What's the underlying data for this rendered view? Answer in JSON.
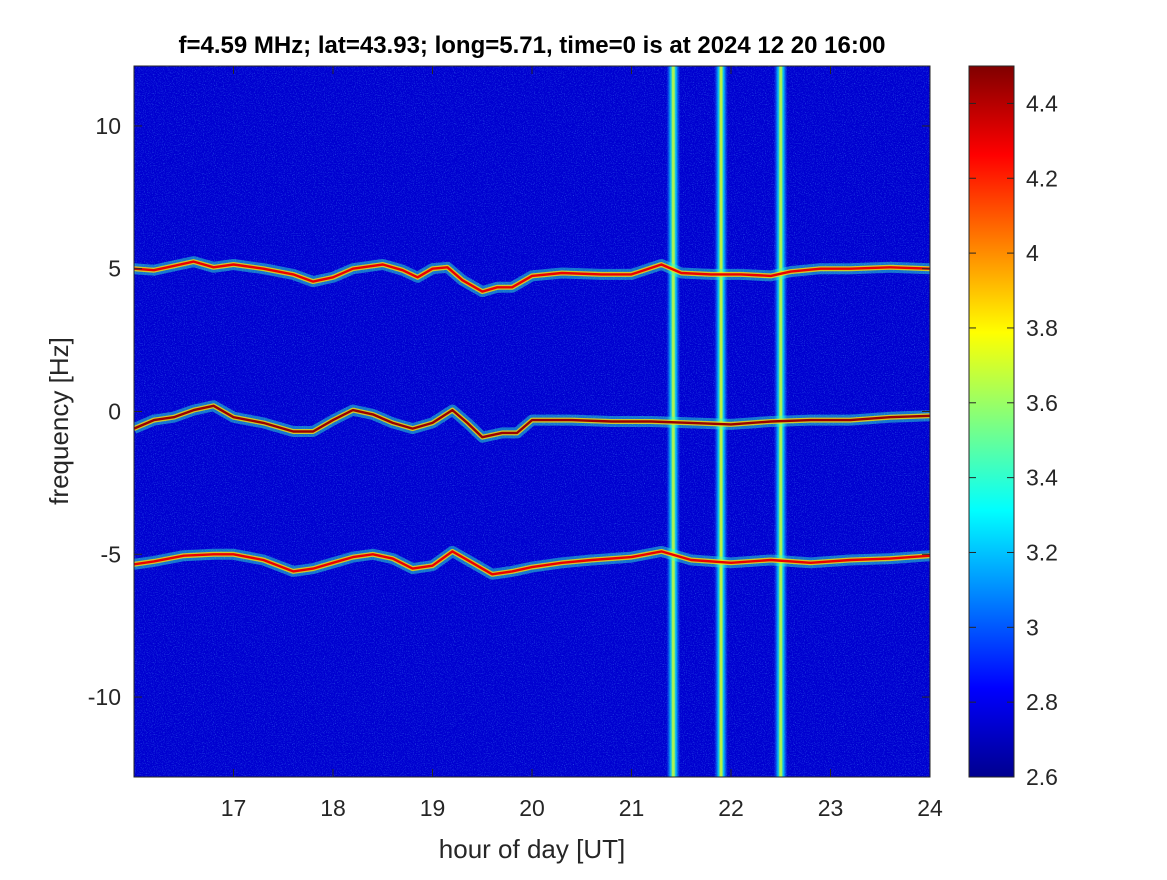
{
  "chart_data": {
    "type": "heatmap",
    "title": "f=4.59 MHz;  lat=43.93; long=5.71, time=0 is at 2024 12 20 16:00",
    "xlabel": "hour of day [UT]",
    "ylabel": "frequency [Hz]",
    "xlim": [
      16.0,
      24.0
    ],
    "ylim": [
      -12.8,
      12.1
    ],
    "x_ticks": [
      "17",
      "18",
      "19",
      "20",
      "21",
      "22",
      "23",
      "24"
    ],
    "x_tick_values": [
      17,
      18,
      19,
      20,
      21,
      22,
      23,
      24
    ],
    "y_ticks": [
      "10",
      "5",
      "0",
      "-5",
      "-10"
    ],
    "y_tick_values": [
      10,
      5,
      0,
      -5,
      -10
    ],
    "colormap": "jet",
    "clim": [
      2.6,
      4.5
    ],
    "colorbar_ticks": [
      "4.4",
      "4.2",
      "4",
      "3.8",
      "3.6",
      "3.4",
      "3.2",
      "3",
      "2.8",
      "2.6"
    ],
    "colorbar_tick_values": [
      4.4,
      4.2,
      4.0,
      3.8,
      3.6,
      3.4,
      3.2,
      3.0,
      2.8,
      2.6
    ],
    "background_level": 2.7,
    "grid": false,
    "doppler_traces": [
      {
        "label": "upper",
        "intensity": 4.3,
        "points": [
          [
            16.0,
            5.0
          ],
          [
            16.2,
            4.95
          ],
          [
            16.4,
            5.1
          ],
          [
            16.6,
            5.25
          ],
          [
            16.8,
            5.05
          ],
          [
            17.0,
            5.15
          ],
          [
            17.3,
            5.0
          ],
          [
            17.6,
            4.8
          ],
          [
            17.8,
            4.55
          ],
          [
            18.0,
            4.7
          ],
          [
            18.2,
            5.0
          ],
          [
            18.5,
            5.15
          ],
          [
            18.7,
            4.95
          ],
          [
            18.85,
            4.7
          ],
          [
            19.0,
            5.0
          ],
          [
            19.15,
            5.05
          ],
          [
            19.3,
            4.6
          ],
          [
            19.5,
            4.2
          ],
          [
            19.65,
            4.35
          ],
          [
            19.8,
            4.35
          ],
          [
            20.0,
            4.75
          ],
          [
            20.3,
            4.85
          ],
          [
            20.7,
            4.8
          ],
          [
            21.0,
            4.8
          ],
          [
            21.3,
            5.15
          ],
          [
            21.5,
            4.85
          ],
          [
            21.8,
            4.8
          ],
          [
            22.1,
            4.8
          ],
          [
            22.4,
            4.75
          ],
          [
            22.6,
            4.9
          ],
          [
            22.9,
            5.0
          ],
          [
            23.2,
            5.0
          ],
          [
            23.6,
            5.05
          ],
          [
            24.0,
            5.0
          ]
        ]
      },
      {
        "label": "center",
        "intensity": 4.45,
        "points": [
          [
            16.0,
            -0.6
          ],
          [
            16.2,
            -0.3
          ],
          [
            16.4,
            -0.2
          ],
          [
            16.6,
            0.05
          ],
          [
            16.8,
            0.2
          ],
          [
            17.0,
            -0.2
          ],
          [
            17.3,
            -0.4
          ],
          [
            17.6,
            -0.7
          ],
          [
            17.8,
            -0.7
          ],
          [
            18.0,
            -0.3
          ],
          [
            18.2,
            0.05
          ],
          [
            18.4,
            -0.1
          ],
          [
            18.6,
            -0.4
          ],
          [
            18.8,
            -0.6
          ],
          [
            19.0,
            -0.4
          ],
          [
            19.2,
            0.05
          ],
          [
            19.35,
            -0.4
          ],
          [
            19.5,
            -0.9
          ],
          [
            19.7,
            -0.75
          ],
          [
            19.85,
            -0.75
          ],
          [
            20.0,
            -0.3
          ],
          [
            20.4,
            -0.3
          ],
          [
            20.8,
            -0.35
          ],
          [
            21.2,
            -0.35
          ],
          [
            21.6,
            -0.4
          ],
          [
            22.0,
            -0.45
          ],
          [
            22.4,
            -0.35
          ],
          [
            22.8,
            -0.3
          ],
          [
            23.2,
            -0.3
          ],
          [
            23.6,
            -0.2
          ],
          [
            24.0,
            -0.15
          ]
        ]
      },
      {
        "label": "lower",
        "intensity": 4.3,
        "points": [
          [
            16.0,
            -5.35
          ],
          [
            16.2,
            -5.25
          ],
          [
            16.5,
            -5.05
          ],
          [
            16.8,
            -5.0
          ],
          [
            17.0,
            -5.0
          ],
          [
            17.3,
            -5.2
          ],
          [
            17.6,
            -5.6
          ],
          [
            17.8,
            -5.5
          ],
          [
            18.0,
            -5.3
          ],
          [
            18.2,
            -5.1
          ],
          [
            18.4,
            -5.0
          ],
          [
            18.6,
            -5.15
          ],
          [
            18.8,
            -5.5
          ],
          [
            19.0,
            -5.4
          ],
          [
            19.2,
            -4.9
          ],
          [
            19.4,
            -5.3
          ],
          [
            19.6,
            -5.7
          ],
          [
            19.8,
            -5.6
          ],
          [
            20.0,
            -5.45
          ],
          [
            20.3,
            -5.3
          ],
          [
            20.6,
            -5.2
          ],
          [
            21.0,
            -5.1
          ],
          [
            21.3,
            -4.9
          ],
          [
            21.6,
            -5.2
          ],
          [
            22.0,
            -5.3
          ],
          [
            22.4,
            -5.2
          ],
          [
            22.8,
            -5.3
          ],
          [
            23.2,
            -5.2
          ],
          [
            23.6,
            -5.15
          ],
          [
            24.0,
            -5.05
          ]
        ]
      }
    ],
    "broadband_stripes": [
      {
        "x": 21.42,
        "intensity": 3.7
      },
      {
        "x": 21.9,
        "intensity": 3.75
      },
      {
        "x": 22.5,
        "intensity": 3.7
      }
    ]
  }
}
